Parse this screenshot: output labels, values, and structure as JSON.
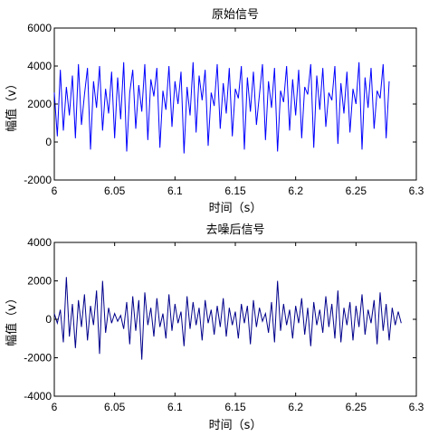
{
  "chart_data": [
    {
      "type": "line",
      "title": "原始信号",
      "xlabel": "时间（s）",
      "ylabel": "幅值（v）",
      "xlim": [
        6,
        6.3
      ],
      "ylim": [
        -2000,
        6000
      ],
      "xticks": [
        6,
        6.05,
        6.1,
        6.15,
        6.2,
        6.25,
        6.3
      ],
      "xtick_labels": [
        "6",
        "6.05",
        "6.1",
        "6.15",
        "6.2",
        "6.25",
        "6.3"
      ],
      "yticks": [
        -2000,
        0,
        2000,
        4000,
        6000
      ],
      "ytick_labels": [
        "-2000",
        "0",
        "2000",
        "4000",
        "6000"
      ],
      "grid": false,
      "line_color": "#0000ff",
      "series": [
        {
          "x_start": 6.0,
          "x_step": 0.0025,
          "values": [
            2600,
            300,
            3800,
            600,
            2900,
            1400,
            3500,
            200,
            4100,
            900,
            2500,
            3900,
            -400,
            3200,
            1800,
            4000,
            600,
            2800,
            1500,
            3700,
            200,
            3400,
            1200,
            4200,
            -500,
            2600,
            3800,
            700,
            3000,
            1600,
            4100,
            100,
            3300,
            2400,
            3900,
            -300,
            2700,
            1700,
            4000,
            800,
            3200,
            2000,
            3700,
            -600,
            2900,
            1400,
            4200,
            500,
            3500,
            2200,
            3800,
            -200,
            2600,
            1900,
            4100,
            700,
            3100,
            1500,
            3900,
            300,
            2800,
            2300,
            4000,
            -400,
            3400,
            1600,
            3700,
            900,
            2500,
            4100,
            100,
            3200,
            1800,
            3900,
            -500,
            2700,
            2100,
            4000,
            600,
            3300,
            1400,
            3800,
            200,
            2900,
            2500,
            4100,
            -300,
            3500,
            1700,
            3900,
            800,
            2600,
            2200,
            4000,
            -100,
            3100,
            1500,
            3700,
            500,
            2800,
            2000,
            4200,
            -400,
            3400,
            1800,
            3900,
            700,
            2700,
            2300,
            4100,
            200,
            3200
          ]
        }
      ]
    },
    {
      "type": "line",
      "title": "去噪后信号",
      "xlabel": "时间（s）",
      "ylabel": "幅值（v）",
      "xlim": [
        6,
        6.3
      ],
      "ylim": [
        -4000,
        4000
      ],
      "xticks": [
        6,
        6.05,
        6.1,
        6.15,
        6.2,
        6.25,
        6.3
      ],
      "xtick_labels": [
        "6",
        "6.05",
        "6.1",
        "6.15",
        "6.2",
        "6.25",
        "6.3"
      ],
      "yticks": [
        -4000,
        -2000,
        0,
        2000,
        4000
      ],
      "ytick_labels": [
        "-4000",
        "-2000",
        "0",
        "2000",
        "4000"
      ],
      "grid": false,
      "line_color": "#00008b",
      "series": [
        {
          "x_start": 6.0,
          "x_step": 0.0025,
          "values": [
            300,
            -200,
            500,
            -1200,
            2200,
            -900,
            800,
            -1500,
            1000,
            -400,
            1300,
            -1100,
            700,
            -300,
            1500,
            -1800,
            2000,
            -700,
            600,
            -200,
            300,
            -100,
            200,
            -500,
            900,
            -1300,
            1200,
            -600,
            1000,
            -2100,
            1400,
            -300,
            600,
            -900,
            1100,
            -400,
            300,
            -1000,
            1300,
            -600,
            800,
            -200,
            400,
            -1400,
            1200,
            -500,
            900,
            -300,
            600,
            -1100,
            1000,
            -200,
            500,
            -800,
            700,
            -400,
            1100,
            -900,
            600,
            -300,
            400,
            -1000,
            800,
            -200,
            700,
            -1300,
            1000,
            -400,
            600,
            -100,
            300,
            -700,
            900,
            -1200,
            2000,
            -600,
            800,
            -300,
            500,
            -1000,
            700,
            -200,
            1100,
            -800,
            600,
            -1400,
            900,
            -300,
            500,
            -700,
            1200,
            -400,
            800,
            -1000,
            1500,
            -1200,
            600,
            -300,
            900,
            -1100,
            700,
            -400,
            1300,
            -800,
            500,
            -200,
            1000,
            -1300,
            1400,
            -600,
            800,
            -1100,
            600,
            -300,
            400,
            -200
          ]
        }
      ]
    }
  ]
}
